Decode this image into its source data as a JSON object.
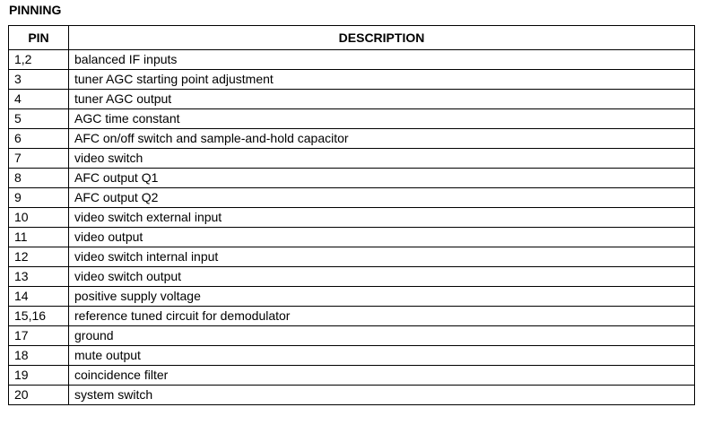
{
  "title": "PINNING",
  "table": {
    "headers": [
      "PIN",
      "DESCRIPTION"
    ],
    "rows": [
      [
        "1,2",
        "balanced IF inputs"
      ],
      [
        "3",
        "tuner AGC starting point adjustment"
      ],
      [
        "4",
        "tuner AGC output"
      ],
      [
        "5",
        "AGC time constant"
      ],
      [
        "6",
        "AFC on/off switch and sample-and-hold capacitor"
      ],
      [
        "7",
        "video switch"
      ],
      [
        "8",
        "AFC output Q1"
      ],
      [
        "9",
        "AFC output Q2"
      ],
      [
        "10",
        "video switch external input"
      ],
      [
        "11",
        "video output"
      ],
      [
        "12",
        "video switch internal input"
      ],
      [
        "13",
        "video switch output"
      ],
      [
        "14",
        "positive supply voltage"
      ],
      [
        "15,16",
        "reference tuned circuit for demodulator"
      ],
      [
        "17",
        "ground"
      ],
      [
        "18",
        "mute output"
      ],
      [
        "19",
        "coincidence filter"
      ],
      [
        "20",
        "system switch"
      ]
    ]
  }
}
